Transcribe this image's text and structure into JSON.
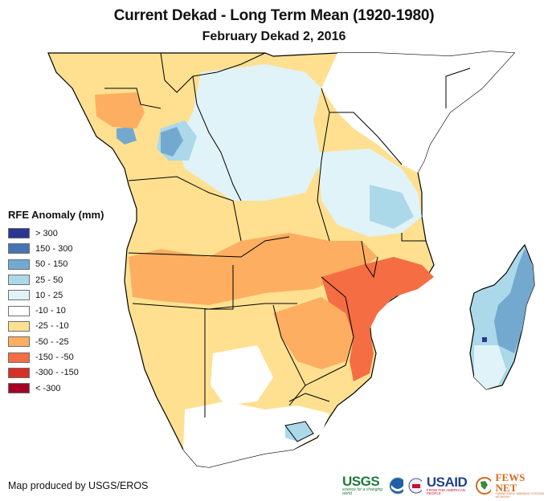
{
  "title": "Current Dekad - Long Term Mean (1920-1980)",
  "subtitle": "February Dekad 2, 2016",
  "legend": {
    "title": "RFE Anomaly (mm)",
    "items": [
      {
        "label": "> 300",
        "color": "#2c3591"
      },
      {
        "label": "150 - 300",
        "color": "#4575b4"
      },
      {
        "label": "50 - 150",
        "color": "#74a9cf"
      },
      {
        "label": "25 - 50",
        "color": "#abd9e9"
      },
      {
        "label": "10 - 25",
        "color": "#e0f3f8"
      },
      {
        "label": "-10 - 10",
        "color": "#ffffff"
      },
      {
        "label": "-25 - -10",
        "color": "#fee090"
      },
      {
        "label": "-50 - -25",
        "color": "#fdae61"
      },
      {
        "label": "-150 - -50",
        "color": "#f46d43"
      },
      {
        "label": "-300 - -150",
        "color": "#d73027"
      },
      {
        "label": "< -300",
        "color": "#a50026"
      }
    ]
  },
  "credit": "Map produced by USGS/EROS",
  "logos": {
    "usgs": {
      "name": "USGS",
      "tagline": "science for a changing world"
    },
    "noaa": {
      "name": "NOAA"
    },
    "usaid": {
      "name": "USAID",
      "tagline": "FROM THE AMERICAN PEOPLE"
    },
    "fewsnet": {
      "name": "FEWS NET",
      "tagline": "FAMINE EARLY WARNING SYSTEMS NETWORK"
    }
  },
  "map": {
    "region": "Central and Southern Africa",
    "regions_anomaly": [
      {
        "area": "West Africa / Sahel edge",
        "class": "-25 - -10"
      },
      {
        "area": "Gabon / Congo",
        "class": "-50 - -25"
      },
      {
        "area": "Central DRC",
        "class": "10 - 50"
      },
      {
        "area": "Angola / Zambia",
        "class": "-50 - -25"
      },
      {
        "area": "Zimbabwe / Mozambique",
        "class": "-150 - -50"
      },
      {
        "area": "Tanzania",
        "class": "10 - 50"
      },
      {
        "area": "Horn of Africa",
        "class": "-10 - 10"
      },
      {
        "area": "Madagascar",
        "class": "25 - 300"
      },
      {
        "area": "South Africa",
        "class": "-10 - 25"
      }
    ]
  }
}
